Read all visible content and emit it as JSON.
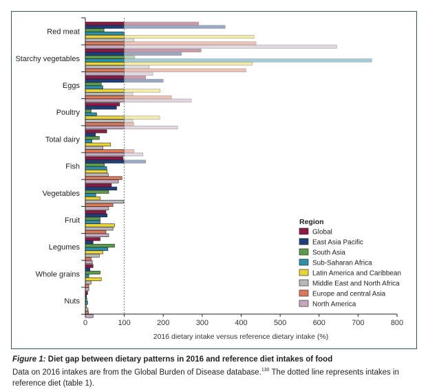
{
  "chart_data": {
    "type": "bar",
    "orientation": "horizontal",
    "title": "",
    "xlabel": "2016 dietary intake versus reference dietary intake (%)",
    "ylabel": "",
    "xlim": [
      0,
      800
    ],
    "xticks": [
      0,
      100,
      200,
      300,
      400,
      500,
      600,
      700,
      800
    ],
    "reference_line": 100,
    "reference_line_style": "dotted",
    "grid": false,
    "legend_title": "Region",
    "legend_position": "bottom-right",
    "categories": [
      "Red meat",
      "Starchy vegetables",
      "Eggs",
      "Poultry",
      "Total dairy",
      "Fish",
      "Vegetables",
      "Fruit",
      "Legumes",
      "Whole grains",
      "Nuts"
    ],
    "series": [
      {
        "name": "Global",
        "color": "#8b1a44",
        "values": [
          291,
          297,
          155,
          88,
          55,
          97,
          67,
          53,
          38,
          20,
          6
        ]
      },
      {
        "name": "East Asia Pacific",
        "color": "#1f3f7a",
        "values": [
          359,
          247,
          200,
          80,
          26,
          155,
          81,
          56,
          20,
          12,
          3
        ]
      },
      {
        "name": "South Asia",
        "color": "#5d9a4e",
        "values": [
          48,
          127,
          41,
          15,
          36,
          49,
          60,
          38,
          75,
          38,
          4
        ]
      },
      {
        "name": "Sub-Saharan Africa",
        "color": "#2e8fa8",
        "values": [
          100,
          735,
          45,
          29,
          17,
          55,
          27,
          38,
          58,
          9,
          6
        ]
      },
      {
        "name": "Latin America and Caribbean",
        "color": "#e8d43a",
        "values": [
          433,
          428,
          192,
          191,
          65,
          56,
          38,
          75,
          45,
          41,
          3
        ]
      },
      {
        "name": "Middle East and North Africa",
        "color": "#b8b8b8",
        "values": [
          125,
          164,
          122,
          122,
          45,
          59,
          99,
          71,
          36,
          15,
          7
        ]
      },
      {
        "name": "Europe and central  Asia",
        "color": "#d9795a",
        "values": [
          438,
          412,
          221,
          124,
          125,
          94,
          71,
          53,
          15,
          9,
          8
        ]
      },
      {
        "name": "North America",
        "color": "#c4a8be",
        "values": [
          645,
          173,
          272,
          237,
          148,
          85,
          60,
          60,
          18,
          9,
          20
        ]
      }
    ]
  },
  "caption": {
    "figure_label": "Figure 1:",
    "title": " Diet gap between dietary patterns in 2016 and reference diet intakes of food",
    "body_before_ref": "Data on 2016 intakes are from the Global Burden of Disease database.",
    "ref": "130",
    "body_after_ref": " The dotted line represents intakes in reference diet (table 1)."
  }
}
